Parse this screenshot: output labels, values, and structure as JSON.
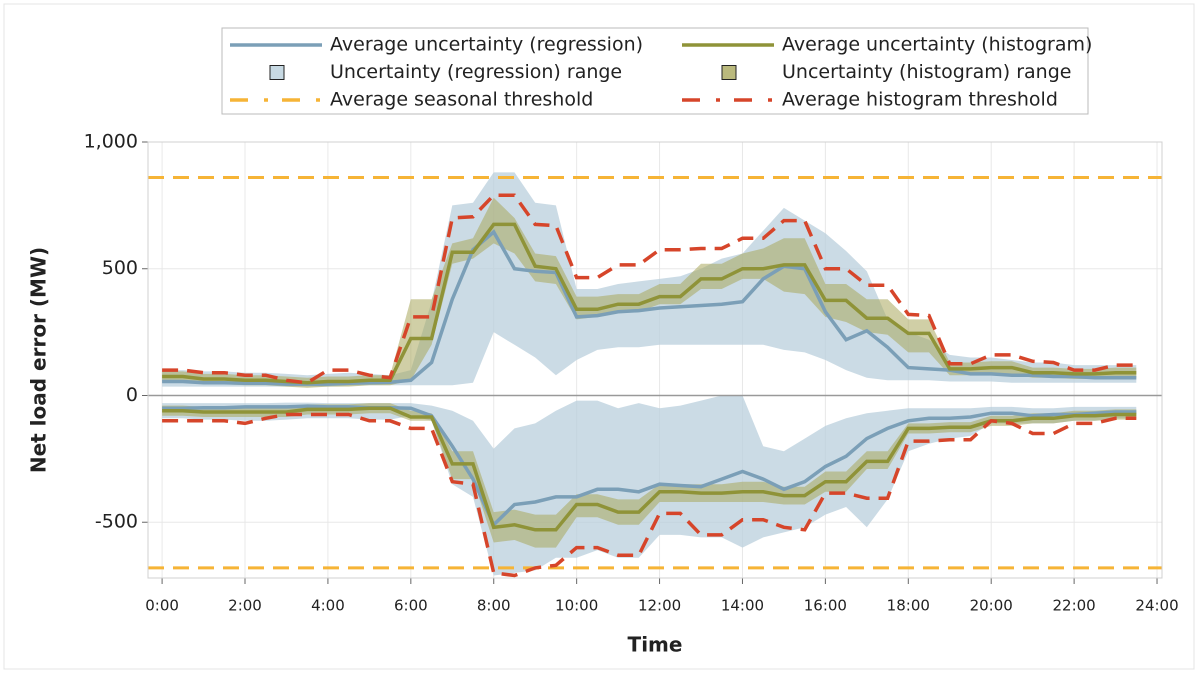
{
  "chart_data": {
    "type": "line",
    "xlabel": "Time",
    "ylabel": "Net load error (MW)",
    "grid": true,
    "legend_position": "top",
    "x": [
      0,
      0.5,
      1,
      1.5,
      2,
      2.5,
      3,
      3.5,
      4,
      4.5,
      5,
      5.5,
      6,
      6.5,
      7,
      7.5,
      8,
      8.5,
      9,
      9.5,
      10,
      10.5,
      11,
      11.5,
      12,
      12.5,
      13,
      13.5,
      14,
      14.5,
      15,
      15.5,
      16,
      16.5,
      17,
      17.5,
      18,
      18.5,
      19,
      19.5,
      20,
      20.5,
      21,
      21.5,
      22,
      22.5,
      23,
      23.5
    ],
    "xlim": [
      -0.34,
      24.12
    ],
    "xticks": [
      {
        "value": 0,
        "label": "0:00"
      },
      {
        "value": 2,
        "label": "2:00"
      },
      {
        "value": 4,
        "label": "4:00"
      },
      {
        "value": 6,
        "label": "6:00"
      },
      {
        "value": 8,
        "label": "8:00"
      },
      {
        "value": 10,
        "label": "10:00"
      },
      {
        "value": 12,
        "label": "12:00"
      },
      {
        "value": 14,
        "label": "14:00"
      },
      {
        "value": 16,
        "label": "16:00"
      },
      {
        "value": 18,
        "label": "18:00"
      },
      {
        "value": 20,
        "label": "20:00"
      },
      {
        "value": 22,
        "label": "22:00"
      },
      {
        "value": 24,
        "label": "24:00"
      }
    ],
    "ylim": [
      -720,
      1000
    ],
    "yticks": [
      -500,
      0,
      500,
      {
        "value": 1000,
        "label": "1,000"
      }
    ],
    "series": [
      {
        "name": "Average uncertainty (regression)",
        "kind": "line",
        "color": "#7b9fb7",
        "positive": [
          55,
          55,
          50,
          50,
          48,
          48,
          45,
          45,
          45,
          48,
          50,
          52,
          60,
          130,
          380,
          575,
          645,
          500,
          490,
          485,
          310,
          315,
          330,
          335,
          345,
          350,
          355,
          360,
          370,
          460,
          510,
          500,
          330,
          220,
          255,
          190,
          110,
          105,
          100,
          85,
          85,
          80,
          80,
          75,
          75,
          70,
          70,
          70
        ],
        "negative": [
          -50,
          -50,
          -48,
          -48,
          -45,
          -45,
          -45,
          -42,
          -45,
          -45,
          -48,
          -48,
          -50,
          -80,
          -200,
          -330,
          -510,
          -430,
          -420,
          -400,
          -400,
          -370,
          -370,
          -380,
          -350,
          -355,
          -360,
          -330,
          -300,
          -330,
          -370,
          -340,
          -280,
          -240,
          -170,
          -130,
          -100,
          -90,
          -90,
          -85,
          -70,
          -70,
          -80,
          -75,
          -75,
          -70,
          -65,
          -65
        ]
      },
      {
        "name": "Average uncertainty (histogram)",
        "kind": "line",
        "color": "#8f9338",
        "positive": [
          75,
          75,
          65,
          65,
          60,
          60,
          55,
          50,
          55,
          55,
          60,
          60,
          225,
          225,
          565,
          565,
          675,
          675,
          510,
          500,
          340,
          340,
          360,
          360,
          390,
          390,
          460,
          460,
          500,
          500,
          515,
          515,
          375,
          375,
          305,
          305,
          245,
          245,
          105,
          105,
          110,
          110,
          90,
          90,
          85,
          85,
          90,
          90
        ],
        "negative": [
          -60,
          -60,
          -65,
          -65,
          -65,
          -65,
          -65,
          -55,
          -55,
          -55,
          -50,
          -50,
          -85,
          -85,
          -270,
          -270,
          -520,
          -510,
          -530,
          -530,
          -430,
          -430,
          -460,
          -460,
          -380,
          -380,
          -385,
          -385,
          -380,
          -380,
          -395,
          -395,
          -340,
          -340,
          -260,
          -260,
          -130,
          -130,
          -125,
          -125,
          -100,
          -100,
          -90,
          -90,
          -80,
          -80,
          -75,
          -75
        ]
      },
      {
        "name": "Uncertainty (regression) range",
        "kind": "band",
        "color": "#b9cfdc",
        "positive_low": [
          35,
          35,
          35,
          35,
          35,
          35,
          35,
          35,
          35,
          38,
          40,
          40,
          40,
          40,
          40,
          50,
          250,
          200,
          150,
          80,
          140,
          180,
          190,
          190,
          200,
          200,
          200,
          200,
          200,
          200,
          180,
          170,
          140,
          100,
          70,
          60,
          60,
          60,
          55,
          55,
          55,
          50,
          50,
          50,
          50,
          50,
          50,
          50
        ],
        "positive_high": [
          100,
          100,
          95,
          95,
          90,
          90,
          85,
          80,
          85,
          90,
          85,
          80,
          100,
          370,
          750,
          760,
          880,
          880,
          760,
          750,
          420,
          420,
          440,
          450,
          460,
          470,
          500,
          540,
          560,
          650,
          740,
          690,
          640,
          570,
          490,
          300,
          250,
          220,
          160,
          150,
          150,
          140,
          130,
          130,
          120,
          120,
          120,
          120
        ],
        "negative_low": [
          -90,
          -90,
          -95,
          -95,
          -100,
          -100,
          -95,
          -90,
          -90,
          -90,
          -95,
          -95,
          -80,
          -100,
          -350,
          -400,
          -710,
          -700,
          -690,
          -640,
          -640,
          -610,
          -640,
          -640,
          -550,
          -550,
          -560,
          -560,
          -600,
          -560,
          -540,
          -520,
          -470,
          -440,
          -520,
          -410,
          -220,
          -190,
          -170,
          -160,
          -110,
          -110,
          -110,
          -110,
          -100,
          -100,
          -90,
          -90
        ],
        "negative_high": [
          -30,
          -30,
          -30,
          -30,
          -30,
          -30,
          -28,
          -28,
          -30,
          -30,
          -30,
          -30,
          -30,
          -40,
          -60,
          -100,
          -210,
          -130,
          -110,
          -60,
          -20,
          -20,
          -50,
          -30,
          -50,
          -40,
          -20,
          0,
          0,
          -200,
          -220,
          -170,
          -120,
          -90,
          -70,
          -60,
          -50,
          -50,
          -50,
          -50,
          -45,
          -45,
          -50,
          -50,
          -45,
          -45,
          -45,
          -45
        ]
      },
      {
        "name": "Uncertainty (histogram) range",
        "kind": "band",
        "color": "#a9a75c",
        "positive_low": [
          55,
          55,
          45,
          45,
          40,
          40,
          35,
          30,
          35,
          35,
          40,
          40,
          60,
          200,
          520,
          540,
          600,
          560,
          450,
          440,
          300,
          310,
          330,
          330,
          360,
          360,
          420,
          420,
          460,
          460,
          410,
          400,
          310,
          290,
          250,
          240,
          170,
          170,
          80,
          80,
          85,
          85,
          70,
          70,
          65,
          65,
          70,
          70
        ],
        "positive_high": [
          95,
          95,
          85,
          85,
          80,
          80,
          75,
          70,
          75,
          75,
          80,
          80,
          380,
          380,
          600,
          620,
          780,
          700,
          560,
          550,
          390,
          390,
          400,
          400,
          440,
          440,
          520,
          520,
          560,
          580,
          620,
          620,
          440,
          440,
          380,
          380,
          300,
          300,
          130,
          130,
          135,
          135,
          110,
          110,
          105,
          105,
          110,
          110
        ],
        "negative_low": [
          -80,
          -80,
          -85,
          -85,
          -85,
          -85,
          -85,
          -75,
          -75,
          -75,
          -70,
          -70,
          -100,
          -100,
          -330,
          -330,
          -580,
          -570,
          -600,
          -600,
          -480,
          -480,
          -510,
          -510,
          -420,
          -420,
          -420,
          -420,
          -420,
          -420,
          -430,
          -430,
          -380,
          -380,
          -290,
          -290,
          -150,
          -150,
          -145,
          -145,
          -120,
          -120,
          -110,
          -110,
          -100,
          -100,
          -95,
          -95
        ],
        "negative_high": [
          -40,
          -40,
          -45,
          -45,
          -45,
          -45,
          -45,
          -35,
          -35,
          -35,
          -30,
          -30,
          -60,
          -70,
          -220,
          -220,
          -460,
          -450,
          -470,
          -470,
          -390,
          -390,
          -410,
          -410,
          -350,
          -350,
          -350,
          -350,
          -340,
          -340,
          -360,
          -360,
          -300,
          -300,
          -220,
          -220,
          -110,
          -110,
          -105,
          -105,
          -80,
          -80,
          -70,
          -70,
          -60,
          -60,
          -55,
          -55
        ]
      },
      {
        "name": "Average seasonal threshold",
        "kind": "hline",
        "color": "#f6b436",
        "dashed": true,
        "positive": 860,
        "negative": -680
      },
      {
        "name": "Average histogram threshold",
        "kind": "line",
        "color": "#d6452a",
        "dashed": true,
        "positive": [
          100,
          100,
          90,
          90,
          80,
          80,
          60,
          50,
          100,
          100,
          80,
          70,
          310,
          310,
          700,
          705,
          790,
          790,
          675,
          670,
          465,
          465,
          515,
          515,
          575,
          575,
          580,
          580,
          620,
          620,
          690,
          690,
          500,
          500,
          435,
          435,
          320,
          315,
          125,
          125,
          160,
          160,
          135,
          130,
          100,
          100,
          120,
          120
        ],
        "negative": [
          -100,
          -100,
          -100,
          -100,
          -110,
          -90,
          -75,
          -75,
          -75,
          -75,
          -100,
          -100,
          -130,
          -130,
          -340,
          -350,
          -700,
          -710,
          -680,
          -670,
          -600,
          -600,
          -630,
          -630,
          -465,
          -465,
          -550,
          -550,
          -490,
          -490,
          -520,
          -530,
          -385,
          -385,
          -405,
          -405,
          -180,
          -180,
          -175,
          -175,
          -100,
          -110,
          -150,
          -150,
          -110,
          -110,
          -90,
          -90
        ]
      }
    ]
  }
}
